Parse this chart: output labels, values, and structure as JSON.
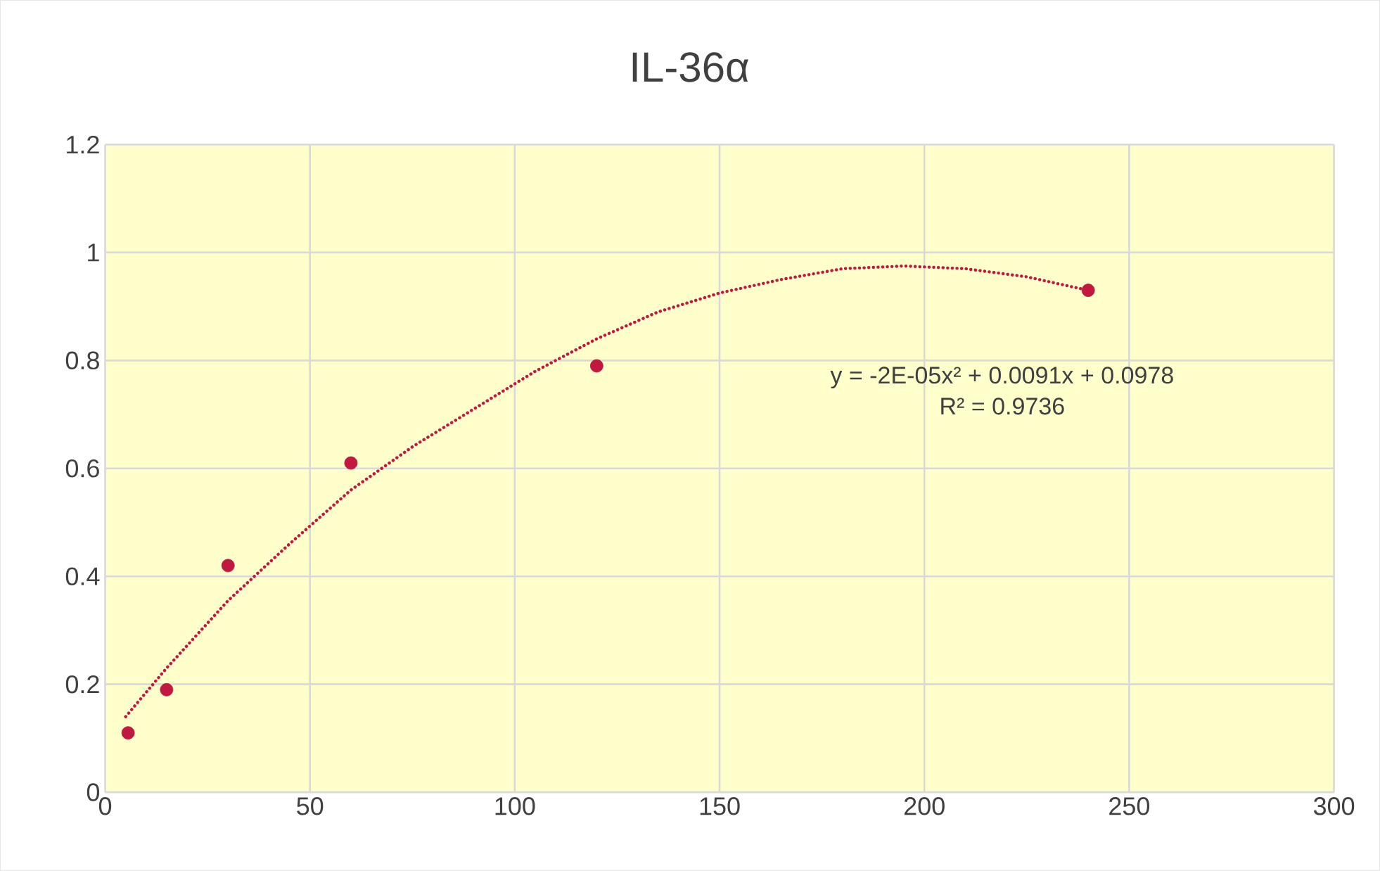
{
  "chart_data": {
    "type": "scatter",
    "title": "IL-36α",
    "series": [
      {
        "type": "scatter",
        "color": "#c0183f",
        "marker": "circle",
        "x": [
          5.6,
          15,
          30,
          60,
          120,
          240
        ],
        "values": [
          0.11,
          0.19,
          0.42,
          0.61,
          0.79,
          0.93
        ]
      },
      {
        "type": "line",
        "color": "#c0183f",
        "line_style": "dotted",
        "x": [
          5,
          15,
          30,
          45,
          60,
          75,
          90,
          105,
          120,
          135,
          150,
          165,
          180,
          195,
          210,
          225,
          240
        ],
        "values": [
          0.14,
          0.23,
          0.355,
          0.46,
          0.56,
          0.64,
          0.71,
          0.78,
          0.84,
          0.89,
          0.925,
          0.95,
          0.97,
          0.975,
          0.97,
          0.955,
          0.93
        ]
      }
    ],
    "xlim": [
      0,
      300
    ],
    "ylim": [
      0,
      1.2
    ],
    "xticks": [
      0,
      50,
      100,
      150,
      200,
      250,
      300
    ],
    "yticks": [
      0,
      0.2,
      0.4,
      0.6,
      0.8,
      1,
      1.2
    ],
    "grid": true,
    "annotations": [
      "y = -2E-05x² + 0.0091x + 0.0978",
      "R² = 0.9736"
    ]
  }
}
